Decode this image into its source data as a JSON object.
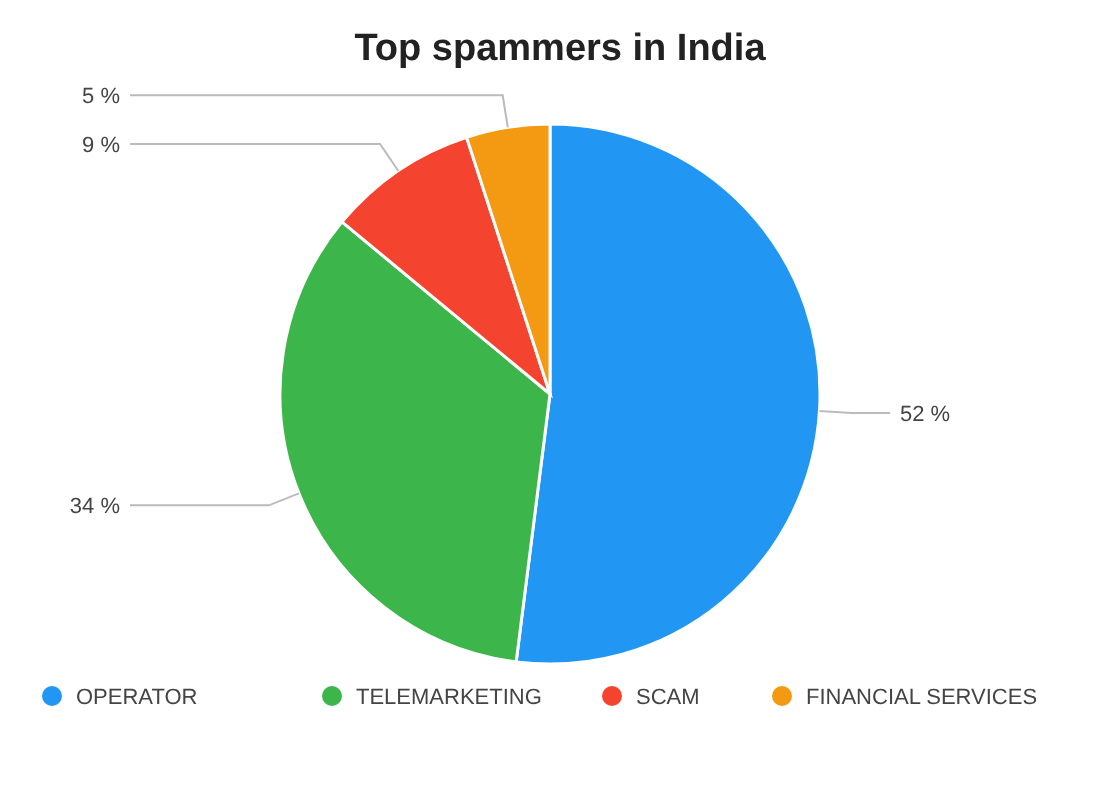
{
  "chart_data": {
    "type": "pie",
    "title": "Top spammers in India",
    "categories": [
      "OPERATOR",
      "TELEMARKETING",
      "SCAM",
      "FINANCIAL SERVICES"
    ],
    "values": [
      52,
      34,
      9,
      5
    ],
    "colors": [
      "#2196f3",
      "#3cb64a",
      "#f4432f",
      "#f39a12"
    ],
    "value_labels": [
      "52 %",
      "34 %",
      "9 %",
      "5 %"
    ],
    "legend": "bottom"
  }
}
